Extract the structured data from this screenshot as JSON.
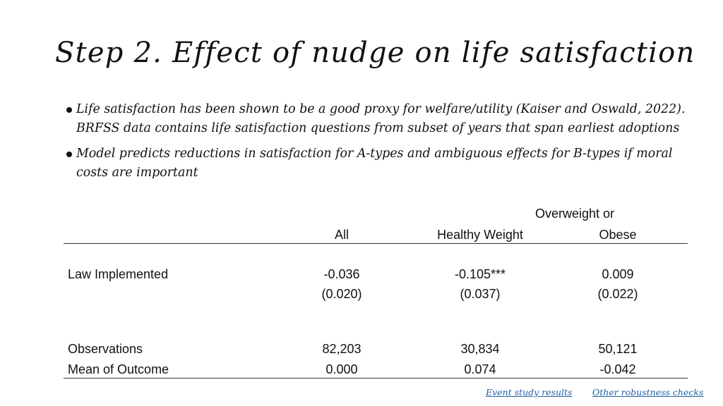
{
  "slide": {
    "title": "Step 2. Effect of nudge on life satisfaction",
    "bullets": [
      "Life satisfaction has been shown to be a good proxy for welfare/utility (Kaiser and Oswald, 2022). BRFSS data contains life satisfaction questions from subset of years that span earliest adoptions",
      "Model predicts reductions in satisfaction for A-types and ambiguous effects for B-types if moral costs are important"
    ]
  },
  "table": {
    "headers": {
      "all": "All",
      "healthy": "Healthy Weight",
      "overweight_line1": "Overweight or",
      "overweight_line2": "Obese"
    },
    "rows": {
      "law": {
        "label": "Law Implemented",
        "all": "-0.036",
        "all_se": "(0.020)",
        "healthy": "-0.105***",
        "healthy_se": "(0.037)",
        "overweight": "0.009",
        "overweight_se": "(0.022)"
      },
      "observations": {
        "label": "Observations",
        "all": "82,203",
        "healthy": "30,834",
        "overweight": "50,121"
      },
      "mean": {
        "label": "Mean of Outcome",
        "all": "0.000",
        "healthy": "0.074",
        "overweight": "-0.042"
      }
    }
  },
  "links": {
    "event_study": "Event study results",
    "robustness": "Other robustness checks"
  },
  "colors": {
    "text": "#111111",
    "link": "#1f5fa8",
    "rule": "#333333"
  }
}
